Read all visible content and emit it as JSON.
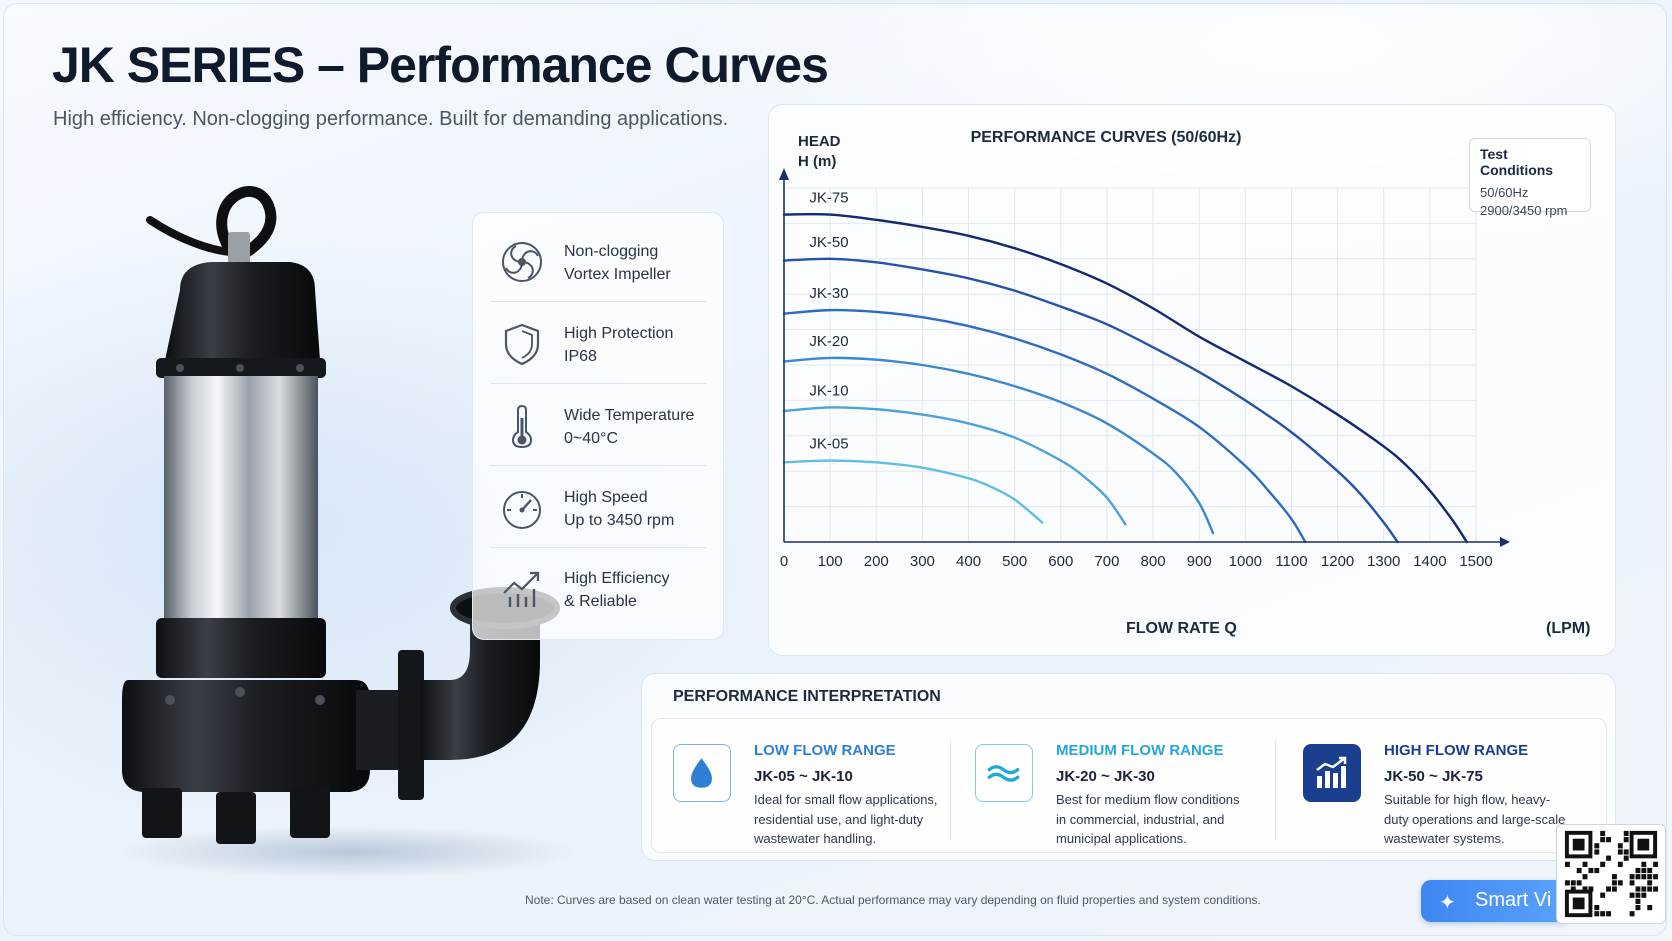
{
  "header": {
    "title": "JK SERIES – Performance Curves",
    "subtitle": "High efficiency. Non-clogging performance. Built for demanding applications."
  },
  "features": [
    {
      "icon": "vortex-impeller-icon",
      "line1": "Non-clogging",
      "line2": "Vortex Impeller"
    },
    {
      "icon": "shield-icon",
      "line1": "High Protection",
      "line2": "IP68"
    },
    {
      "icon": "thermometer-icon",
      "line1": "Wide Temperature",
      "line2": "0~40°C"
    },
    {
      "icon": "speedometer-icon",
      "line1": "High Speed",
      "line2": "Up to 3450 rpm"
    },
    {
      "icon": "growth-chart-icon",
      "line1": "High Efficiency",
      "line2": "& Reliable"
    }
  ],
  "test_conditions": {
    "title": "Test Conditions",
    "line1": "50/60Hz",
    "line2": "2900/3450 rpm"
  },
  "chart_data": {
    "type": "line",
    "title": "PERFORMANCE CURVES (50/60Hz)",
    "ylabel_line1": "HEAD",
    "ylabel_line2": "H (m)",
    "xlabel": "FLOW RATE Q",
    "xunit": "(LPM)",
    "xlim": [
      0,
      1500
    ],
    "ylim": [
      0,
      20
    ],
    "xticks": [
      0,
      100,
      200,
      300,
      400,
      500,
      600,
      700,
      800,
      900,
      1000,
      1100,
      1200,
      1300,
      1400,
      1500
    ],
    "yticks": [
      0,
      2,
      4,
      6,
      8,
      10,
      12,
      14,
      16,
      18,
      20
    ],
    "grid": true,
    "series": [
      {
        "name": "JK-75",
        "color": "#13286e",
        "x": [
          0,
          100,
          200,
          300,
          400,
          500,
          600,
          700,
          800,
          900,
          1000,
          1100,
          1200,
          1300,
          1350,
          1400,
          1450,
          1480
        ],
        "y": [
          18.5,
          18.5,
          18.2,
          17.8,
          17.3,
          16.6,
          15.7,
          14.6,
          13.2,
          11.6,
          10.2,
          8.8,
          7.2,
          5.4,
          4.3,
          2.9,
          1.2,
          0.0
        ]
      },
      {
        "name": "JK-50",
        "color": "#2653a8",
        "x": [
          0,
          100,
          200,
          300,
          400,
          500,
          600,
          700,
          800,
          900,
          1000,
          1100,
          1200,
          1250,
          1300,
          1330
        ],
        "y": [
          15.9,
          16.0,
          15.8,
          15.4,
          14.9,
          14.2,
          13.3,
          12.3,
          11.0,
          9.6,
          8.0,
          6.2,
          4.0,
          2.7,
          1.1,
          0.0
        ]
      },
      {
        "name": "JK-30",
        "color": "#2f6cc0",
        "x": [
          0,
          100,
          200,
          300,
          400,
          500,
          600,
          700,
          800,
          900,
          1000,
          1050,
          1100,
          1130
        ],
        "y": [
          12.9,
          13.1,
          13.0,
          12.7,
          12.2,
          11.5,
          10.6,
          9.5,
          8.1,
          6.5,
          4.3,
          2.9,
          1.3,
          0.0
        ]
      },
      {
        "name": "JK-20",
        "color": "#3a88cf",
        "x": [
          0,
          100,
          200,
          300,
          400,
          500,
          600,
          700,
          800,
          850,
          900,
          930
        ],
        "y": [
          10.2,
          10.4,
          10.3,
          10.0,
          9.5,
          8.8,
          7.9,
          6.7,
          5.0,
          3.9,
          2.2,
          0.5
        ]
      },
      {
        "name": "JK-10",
        "color": "#4ba3d9",
        "x": [
          0,
          100,
          200,
          300,
          400,
          500,
          600,
          650,
          700,
          740
        ],
        "y": [
          7.4,
          7.6,
          7.5,
          7.2,
          6.7,
          5.9,
          4.6,
          3.7,
          2.5,
          1.0
        ]
      },
      {
        "name": "JK-05",
        "color": "#62bde4",
        "x": [
          0,
          100,
          200,
          300,
          400,
          450,
          500,
          560
        ],
        "y": [
          4.5,
          4.6,
          4.5,
          4.2,
          3.6,
          3.1,
          2.4,
          1.1
        ]
      }
    ]
  },
  "interpretation": {
    "title": "PERFORMANCE INTERPRETATION",
    "ranges": [
      {
        "title": "LOW FLOW RANGE",
        "color": "#2f7fd6",
        "icon": "water-drop-icon",
        "models": "JK-05 ~ JK-10",
        "desc": "Ideal for small flow applications, residential use, and light-duty wastewater handling."
      },
      {
        "title": "MEDIUM FLOW RANGE",
        "color": "#22a8d8",
        "icon": "wave-icon",
        "models": "JK-20 ~ JK-30",
        "desc": "Best for medium flow conditions in commercial, industrial, and municipal applications."
      },
      {
        "title": "HIGH FLOW RANGE",
        "color": "#1b3f8f",
        "icon": "bar-chart-icon",
        "models": "JK-50 ~ JK-75",
        "desc": "Suitable for high flow, heavy-duty operations and large-scale wastewater systems."
      }
    ]
  },
  "note": "Note: Curves are based on clean water testing at 20°C. Actual performance may vary depending on fluid properties and system conditions.",
  "smart_button": {
    "label": "Smart Vi"
  }
}
